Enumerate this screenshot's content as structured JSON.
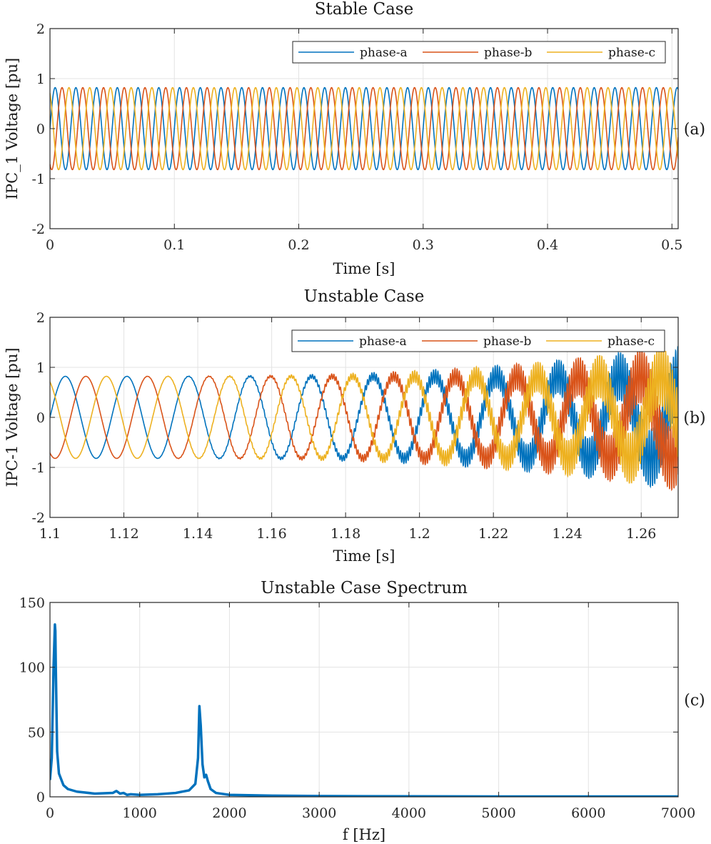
{
  "chart_data": [
    {
      "type": "line",
      "title": "Stable Case",
      "xlabel": "Time [s]",
      "ylabel": "IPC_1 Voltage [pu]",
      "panel_label": "(a)",
      "xlim": [
        0,
        0.505
      ],
      "ylim": [
        -2,
        2
      ],
      "xticks": [
        0,
        0.1,
        0.2,
        0.3,
        0.4,
        0.5
      ],
      "xtick_labels": [
        "0",
        "0.1",
        "0.2",
        "0.3",
        "0.4",
        "0.5"
      ],
      "yticks": [
        -2,
        -1,
        0,
        1,
        2
      ],
      "ytick_labels": [
        "-2",
        "-1",
        "0",
        "1",
        "2"
      ],
      "grid": true,
      "legend": "top-right",
      "signal": {
        "amplitude": 0.82,
        "frequency_hz": 60,
        "phase_shift_deg": 120
      },
      "series": [
        {
          "name": "phase-a",
          "color": "#0072BD"
        },
        {
          "name": "phase-b",
          "color": "#D95319"
        },
        {
          "name": "phase-c",
          "color": "#EDB120"
        }
      ]
    },
    {
      "type": "line",
      "title": "Unstable Case",
      "xlabel": "Time [s]",
      "ylabel": "IPC-1 Voltage [pu]",
      "panel_label": "(b)",
      "xlim": [
        1.1,
        1.27
      ],
      "ylim": [
        -2,
        2
      ],
      "xticks": [
        1.1,
        1.12,
        1.14,
        1.16,
        1.18,
        1.2,
        1.22,
        1.24,
        1.26
      ],
      "xtick_labels": [
        "1.1",
        "1.12",
        "1.14",
        "1.16",
        "1.18",
        "1.2",
        "1.22",
        "1.24",
        "1.26"
      ],
      "yticks": [
        -2,
        -1,
        0,
        1,
        2
      ],
      "ytick_labels": [
        "-2",
        "-1",
        "0",
        "1",
        "2"
      ],
      "grid": true,
      "legend": "top-right",
      "signal": {
        "amplitude": 0.82,
        "frequency_hz": 60,
        "oscillation_hz": 1660,
        "oscillation_end_amplitude": 0.65
      },
      "series": [
        {
          "name": "phase-a",
          "color": "#0072BD"
        },
        {
          "name": "phase-b",
          "color": "#D95319"
        },
        {
          "name": "phase-c",
          "color": "#EDB120"
        }
      ]
    },
    {
      "type": "line",
      "title": "Unstable Case Spectrum",
      "xlabel": "f [Hz]",
      "ylabel": "",
      "panel_label": "(c)",
      "xlim": [
        0,
        7000
      ],
      "ylim": [
        0,
        150
      ],
      "xticks": [
        0,
        1000,
        2000,
        3000,
        4000,
        5000,
        6000,
        7000
      ],
      "xtick_labels": [
        "0",
        "1000",
        "2000",
        "3000",
        "4000",
        "5000",
        "6000",
        "7000"
      ],
      "yticks": [
        0,
        50,
        100,
        150
      ],
      "ytick_labels": [
        "0",
        "50",
        "100",
        "150"
      ],
      "grid": true,
      "series": [
        {
          "color": "#0072BD",
          "x": [
            0,
            20,
            40,
            55,
            60,
            65,
            80,
            100,
            150,
            200,
            300,
            500,
            700,
            740,
            780,
            820,
            860,
            900,
            1000,
            1200,
            1400,
            1550,
            1620,
            1650,
            1665,
            1680,
            1700,
            1720,
            1740,
            1760,
            1790,
            1850,
            2000,
            2500,
            3000,
            4000,
            5000,
            6000,
            7000
          ],
          "y": [
            13,
            30,
            100,
            133,
            128,
            100,
            35,
            18,
            9,
            6,
            4,
            2.5,
            3,
            4.5,
            2.5,
            3,
            1.5,
            2,
            1.5,
            2,
            3,
            5,
            10,
            30,
            70,
            55,
            25,
            15,
            17,
            12,
            6,
            3,
            1.5,
            0.9,
            0.6,
            0.4,
            0.3,
            0.3,
            0.3
          ]
        }
      ]
    }
  ]
}
